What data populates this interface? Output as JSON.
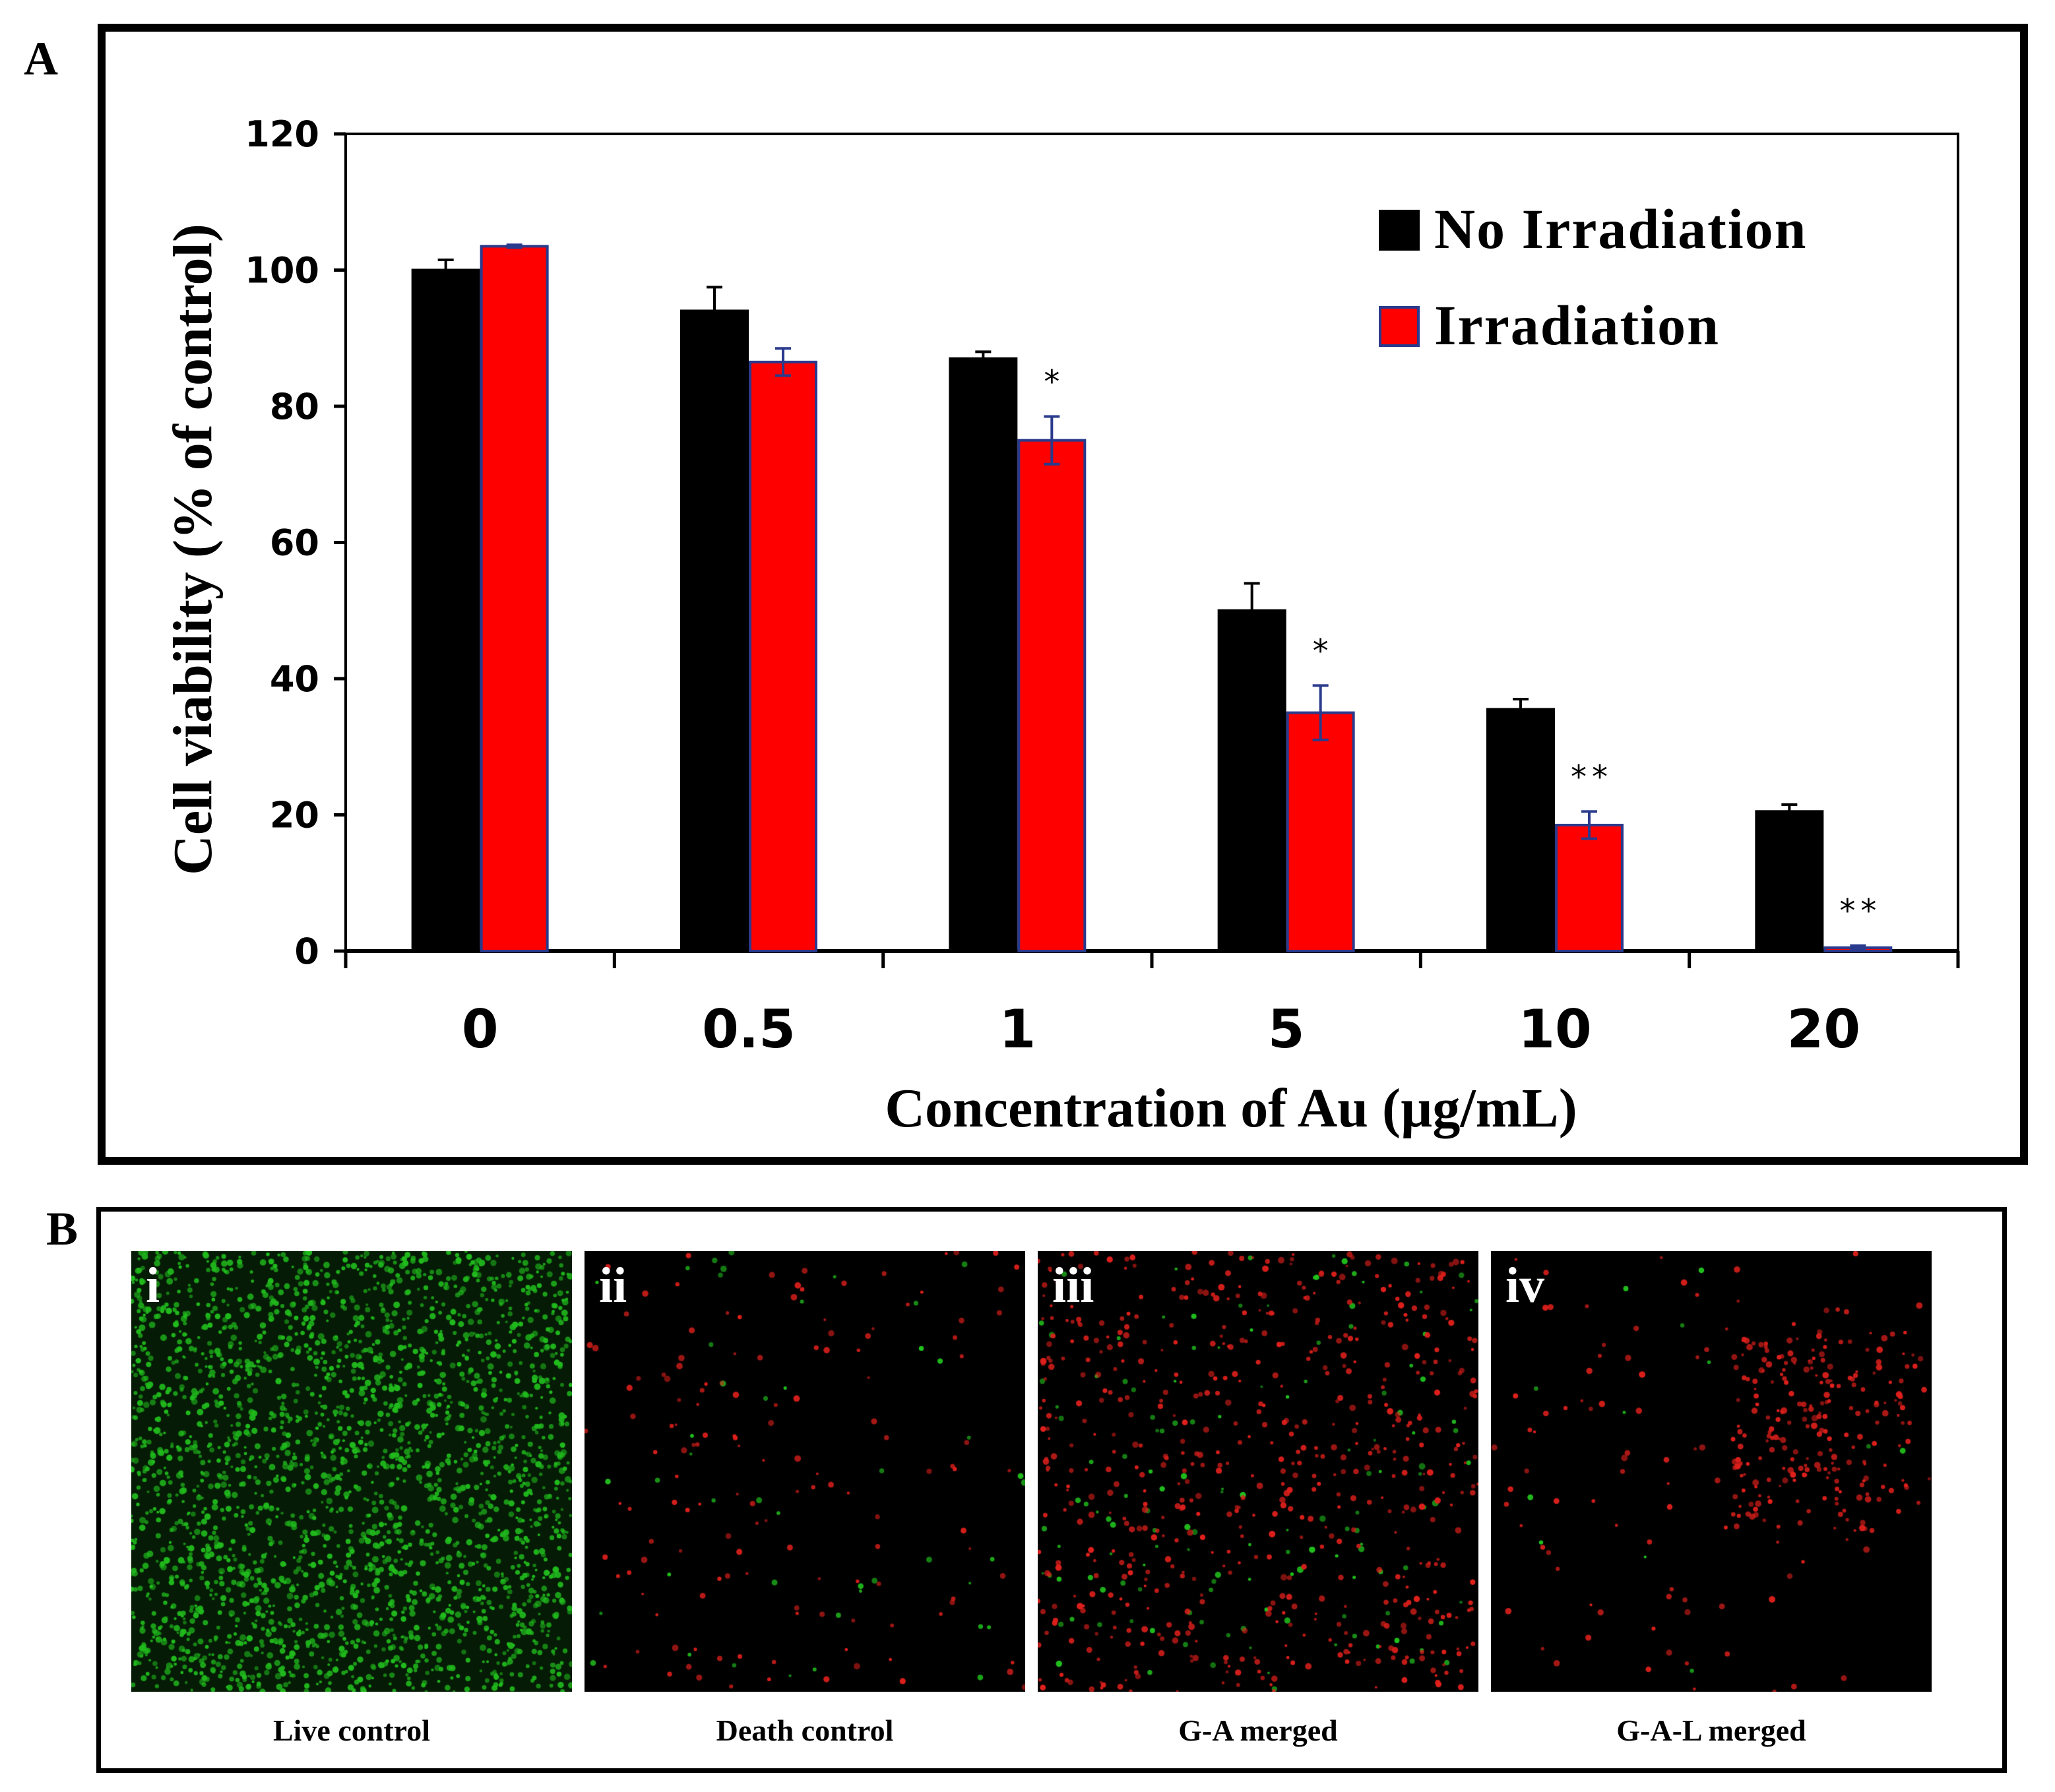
{
  "panel_labels": {
    "a": "A",
    "b": "B"
  },
  "chart_data": {
    "type": "bar",
    "title": "",
    "xlabel": "Concentration of Au (µg/mL)",
    "ylabel": "Cell viability (% of control)",
    "categories": [
      "0",
      "0.5",
      "1",
      "5",
      "10",
      "20"
    ],
    "ylim": [
      0,
      120
    ],
    "yticks": [
      0,
      20,
      40,
      60,
      80,
      100,
      120
    ],
    "legend_position": "top-right",
    "series": [
      {
        "name": "No Irradiation",
        "color": "#000000",
        "edge": "#000000",
        "values": [
          100,
          94,
          87,
          50,
          35.5,
          20.5
        ],
        "errors": [
          1.5,
          3.5,
          1.0,
          4.0,
          1.5,
          1.0
        ]
      },
      {
        "name": "Irradiation",
        "color": "#ff0000",
        "edge": "#2a3a8c",
        "values": [
          103.5,
          86.5,
          75,
          35,
          18.5,
          0.5
        ],
        "errors": [
          0.2,
          2.0,
          3.5,
          4.0,
          2.0,
          0.3
        ]
      }
    ],
    "annotations": [
      {
        "category": "1",
        "series": "Irradiation",
        "text": "*"
      },
      {
        "category": "5",
        "series": "Irradiation",
        "text": "*"
      },
      {
        "category": "10",
        "series": "Irradiation",
        "text": "**"
      },
      {
        "category": "20",
        "series": "Irradiation",
        "text": "**"
      }
    ]
  },
  "panel_b": {
    "images": [
      {
        "tag": "i",
        "caption": "Live control",
        "green": 2600,
        "red": 0,
        "cluster": "none"
      },
      {
        "tag": "ii",
        "caption": "Death control",
        "green": 45,
        "red": 140,
        "cluster": "none"
      },
      {
        "tag": "iii",
        "caption": "G-A merged",
        "green": 140,
        "red": 620,
        "cluster": "none"
      },
      {
        "tag": "iv",
        "caption": "G-A-L merged",
        "green": 12,
        "red": 320,
        "cluster": "upper-right"
      }
    ],
    "colors": {
      "green": "#22c41e",
      "red": "#e0201c",
      "background": "#000000"
    }
  }
}
